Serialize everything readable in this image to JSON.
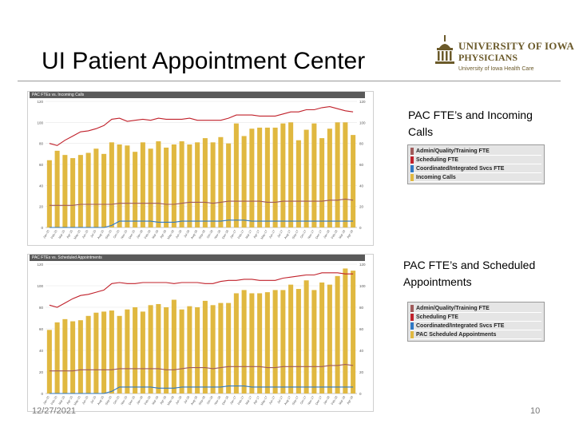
{
  "slide": {
    "title": "UI Patient Appointment Center",
    "date": "12/27/2021",
    "page_number": "10"
  },
  "logo": {
    "line1": "UNIVERSITY OF IOWA",
    "line2": "PHYSICIANS",
    "line3": "University of Iowa Health Care",
    "color": "#6b5a2a"
  },
  "captions": {
    "calls": "PAC FTE’s and Incoming Calls",
    "appointments": "PAC FTE’s and Scheduled Appointments"
  },
  "legends": {
    "calls": [
      {
        "label": "Admin/Quality/Training FTE",
        "color": "#a05a5a"
      },
      {
        "label": "Scheduling FTE",
        "color": "#c0202a"
      },
      {
        "label": "Coordinated/Integrated Svcs FTE",
        "color": "#2f78c4"
      },
      {
        "label": "Incoming Calls",
        "color": "#e0b840"
      }
    ],
    "appointments": [
      {
        "label": "Admin/Quality/Training FTE",
        "color": "#a05a5a"
      },
      {
        "label": "Scheduling FTE",
        "color": "#c0202a"
      },
      {
        "label": "Coordinated/Integrated Svcs FTE",
        "color": "#2f78c4"
      },
      {
        "label": "PAC Scheduled Appointments",
        "color": "#e0b840"
      }
    ]
  },
  "chart_data": [
    {
      "type": "bar",
      "title": "PAC FTEs vs. Incoming Calls",
      "ylim": [
        0,
        120
      ],
      "yticks": [
        0,
        20,
        40,
        60,
        80,
        100,
        120
      ],
      "categories": [
        "Jan-15",
        "Feb-15",
        "Mar-15",
        "Apr-15",
        "May-15",
        "Jun-15",
        "Jul-15",
        "Aug-15",
        "Sep-15",
        "Oct-15",
        "Nov-15",
        "Dec-15",
        "Jan-16",
        "Feb-16",
        "Mar-16",
        "Apr-16",
        "May-16",
        "Jun-16",
        "Jul-16",
        "Aug-16",
        "Sep-16",
        "Oct-16",
        "Nov-16",
        "Dec-16",
        "Jan-17",
        "Feb-17",
        "Mar-17",
        "Apr-17",
        "May-17",
        "Jun-17",
        "Jul-17",
        "Aug-17",
        "Sep-17",
        "Oct-17",
        "Nov-17",
        "Dec-17",
        "Jan-18",
        "Feb-18",
        "Mar-18",
        "Apr-18"
      ],
      "series": [
        {
          "name": "Incoming Calls",
          "kind": "bar",
          "color": "#e0b840",
          "values": [
            64,
            73,
            69,
            66,
            69,
            71,
            75,
            70,
            81,
            79,
            78,
            72,
            81,
            75,
            82,
            76,
            79,
            82,
            79,
            81,
            85,
            81,
            86,
            80,
            99,
            87,
            94,
            95,
            95,
            95,
            99,
            100,
            83,
            93,
            99,
            85,
            94,
            100,
            100,
            88
          ]
        },
        {
          "name": "Scheduling FTE",
          "kind": "line",
          "color": "#c0202a",
          "values": [
            80,
            78,
            83,
            87,
            91,
            92,
            94,
            97,
            103,
            104,
            101,
            102,
            103,
            102,
            104,
            103,
            103,
            103,
            104,
            102,
            102,
            102,
            102,
            104,
            107,
            107,
            107,
            106,
            106,
            106,
            108,
            110,
            110,
            112,
            112,
            114,
            115,
            113,
            111,
            110
          ]
        },
        {
          "name": "Admin/Quality/Training FTE",
          "kind": "line",
          "color": "#a05a5a",
          "values": [
            21,
            21,
            21,
            21,
            22,
            22,
            22,
            22,
            22,
            23,
            23,
            23,
            23,
            23,
            23,
            22,
            22,
            23,
            24,
            24,
            24,
            23,
            24,
            25,
            25,
            25,
            25,
            25,
            24,
            24,
            25,
            25,
            25,
            25,
            25,
            25,
            26,
            26,
            27,
            26
          ]
        },
        {
          "name": "Coordinated/Integrated Svcs FTE",
          "kind": "line",
          "color": "#2f78c4",
          "values": [
            0,
            0,
            0,
            0,
            0,
            0,
            0,
            0,
            2,
            6,
            6,
            6,
            6,
            6,
            5,
            5,
            5,
            6,
            6,
            6,
            6,
            6,
            6,
            7,
            7,
            7,
            6,
            6,
            6,
            6,
            6,
            6,
            6,
            6,
            6,
            6,
            6,
            6,
            6,
            6
          ]
        }
      ]
    },
    {
      "type": "bar",
      "title": "PAC FTEs vs. Scheduled Appointments",
      "ylim": [
        0,
        120
      ],
      "yticks": [
        0,
        20,
        40,
        60,
        80,
        100,
        120
      ],
      "categories": [
        "Jan-15",
        "Feb-15",
        "Mar-15",
        "Apr-15",
        "May-15",
        "Jun-15",
        "Jul-15",
        "Aug-15",
        "Sep-15",
        "Oct-15",
        "Nov-15",
        "Dec-15",
        "Jan-16",
        "Feb-16",
        "Mar-16",
        "Apr-16",
        "May-16",
        "Jun-16",
        "Jul-16",
        "Aug-16",
        "Sep-16",
        "Oct-16",
        "Nov-16",
        "Dec-16",
        "Jan-17",
        "Feb-17",
        "Mar-17",
        "Apr-17",
        "May-17",
        "Jun-17",
        "Jul-17",
        "Aug-17",
        "Sep-17",
        "Oct-17",
        "Nov-17",
        "Dec-17",
        "Jan-18",
        "Feb-18",
        "Mar-18",
        "Apr-18"
      ],
      "series": [
        {
          "name": "PAC Scheduled Appointments",
          "kind": "bar",
          "color": "#e0b840",
          "values": [
            59,
            66,
            69,
            67,
            68,
            72,
            75,
            76,
            77,
            72,
            78,
            80,
            76,
            82,
            83,
            80,
            87,
            78,
            81,
            80,
            86,
            82,
            84,
            84,
            93,
            96,
            93,
            93,
            94,
            96,
            96,
            101,
            97,
            105,
            96,
            103,
            101,
            109,
            116,
            114
          ]
        },
        {
          "name": "Scheduling FTE",
          "kind": "line",
          "color": "#c0202a",
          "values": [
            82,
            80,
            84,
            88,
            91,
            92,
            94,
            96,
            102,
            103,
            102,
            102,
            103,
            103,
            103,
            103,
            102,
            103,
            103,
            103,
            102,
            102,
            104,
            105,
            105,
            106,
            106,
            105,
            105,
            105,
            107,
            108,
            109,
            110,
            110,
            112,
            112,
            112,
            111,
            111
          ]
        },
        {
          "name": "Admin/Quality/Training FTE",
          "kind": "line",
          "color": "#a05a5a",
          "values": [
            21,
            21,
            21,
            21,
            22,
            22,
            22,
            22,
            22,
            23,
            23,
            23,
            23,
            23,
            23,
            22,
            22,
            23,
            24,
            24,
            24,
            23,
            24,
            25,
            25,
            25,
            25,
            25,
            24,
            24,
            25,
            25,
            25,
            25,
            25,
            25,
            26,
            26,
            27,
            26
          ]
        },
        {
          "name": "Coordinated/Integrated Svcs FTE",
          "kind": "line",
          "color": "#2f78c4",
          "values": [
            0,
            0,
            0,
            0,
            0,
            0,
            0,
            0,
            2,
            6,
            6,
            6,
            6,
            6,
            5,
            5,
            5,
            6,
            6,
            6,
            6,
            6,
            6,
            7,
            7,
            7,
            6,
            6,
            6,
            6,
            6,
            6,
            6,
            6,
            6,
            6,
            6,
            6,
            6,
            6
          ]
        }
      ]
    }
  ]
}
